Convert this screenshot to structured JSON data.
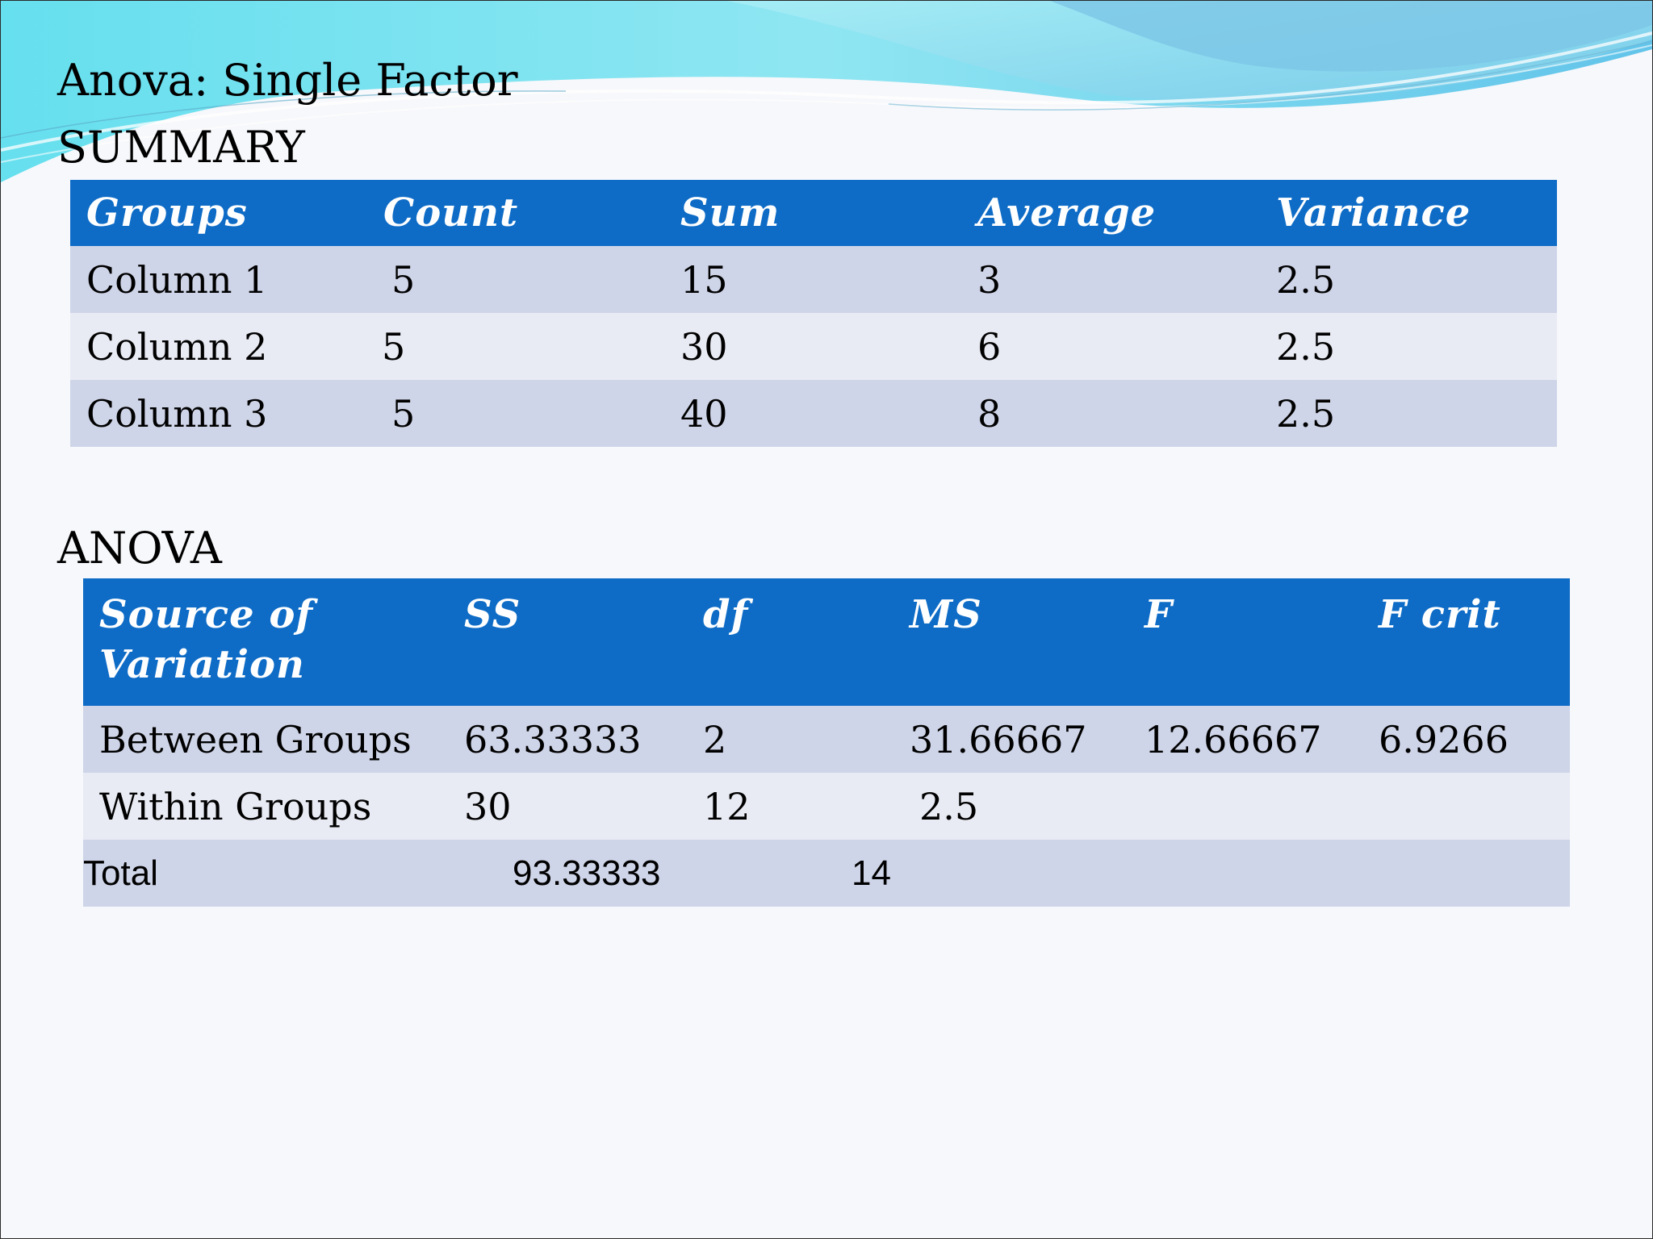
{
  "title": "Anova: Single Factor",
  "summary_label": "SUMMARY",
  "summary_table": {
    "headers": [
      "Groups",
      "Count",
      "Sum",
      "Average",
      "Variance"
    ],
    "rows": [
      [
        "Column 1",
        "5",
        "15",
        "3",
        "2.5"
      ],
      [
        "Column 2",
        "5",
        "30",
        "6",
        "2.5"
      ],
      [
        "Column 3",
        "5",
        "40",
        "8",
        "2.5"
      ]
    ]
  },
  "anova_label": "ANOVA",
  "anova_table": {
    "headers": [
      "Source of Variation",
      "SS",
      "df",
      "MS",
      "F",
      "F crit"
    ],
    "rows": [
      [
        "Between Groups",
        "63.33333",
        "2",
        "31.66667",
        "12.66667",
        "6.9266"
      ],
      [
        "Within Groups",
        "30",
        "12",
        "2.5",
        "",
        ""
      ]
    ],
    "total": {
      "label": "Total",
      "ss": "93.33333",
      "df": "14"
    }
  },
  "colors": {
    "header_blue": "#0f6cc6",
    "row_dark": "#cfd5e8",
    "row_light": "#e9ebf4",
    "wave_cyan": "#7fe3f0",
    "wave_blue": "#7cc8ea"
  }
}
